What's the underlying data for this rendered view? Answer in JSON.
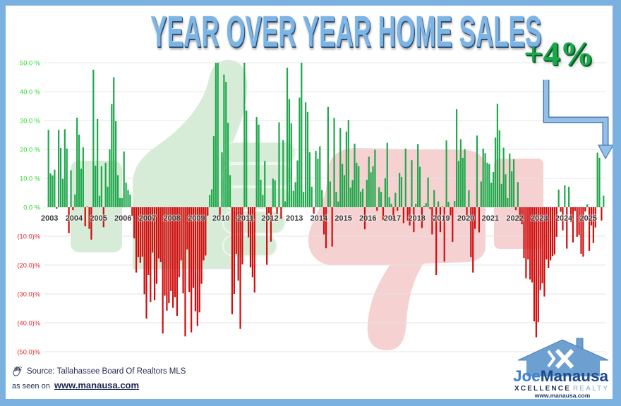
{
  "title": "YEAR OVER YEAR HOME SALES",
  "annotation": {
    "text": "+4%",
    "arrow_icon": "bent-arrow-down-icon"
  },
  "source": {
    "icon": "waving-hand-icon",
    "text": "Source: Tallahassee Board Of Realtors MLS",
    "seen_on_prefix": "as seen on",
    "seen_on_link": "www.manausa.com"
  },
  "logo": {
    "icon": "house-x-icon",
    "name_part1": "Joe",
    "name_part2": "Manausa",
    "tagline_bold": "XCELLENCE",
    "tagline_light": "REALTY",
    "url": "www.manausa.com"
  },
  "colors": {
    "frame": "#7ab1e0",
    "positive": "#1fa84c",
    "negative": "#d10c0c",
    "positive_label": "#2fdc2f",
    "negative_label": "#e42a30",
    "thumbs_up_watermark": "#d7ecd7",
    "thumbs_down_watermark": "#f6d1d1",
    "arrow": "#93c0ea"
  },
  "chart_data": {
    "type": "bar",
    "title": "YEAR OVER YEAR HOME SALES",
    "xlabel": "",
    "ylabel": "",
    "ylim": [
      -50,
      50
    ],
    "grid": true,
    "legend": null,
    "annotation": "+4%",
    "frequency": "monthly",
    "x_tick_labels": [
      "2003",
      "2004",
      "2005",
      "2006",
      "2007",
      "2008",
      "2009",
      "2010",
      "2011",
      "2012",
      "2013",
      "2014",
      "2015",
      "2016",
      "2017",
      "2018",
      "2019",
      "2020",
      "2021",
      "2022",
      "2023",
      "2024",
      "2025"
    ],
    "y_ticks": [
      50,
      40,
      30,
      20,
      10,
      0,
      -10,
      -20,
      -30,
      -40,
      -50
    ],
    "y_tick_labels": [
      "50.0 %",
      "40.0 %",
      "30.0 %",
      "20.0 %",
      "10.0 %",
      "0.0 %",
      "(10.0)%",
      "(20.0)%",
      "(30.0)%",
      "(40.0)%",
      "(50.0)%"
    ],
    "values": [
      26.8,
      11.7,
      11,
      13,
      -0.5,
      26.8,
      20.5,
      9.8,
      27,
      20.3,
      -9,
      12.8,
      -1,
      4.4,
      31,
      25.1,
      13.3,
      20.7,
      -6.6,
      0.3,
      -7.5,
      -11.2,
      47.6,
      14.4,
      30.5,
      4,
      14.2,
      -6.9,
      15.4,
      7.1,
      20,
      35.7,
      45,
      29.8,
      11.1,
      3.2,
      3.2,
      19.3,
      8.5,
      6,
      4.4,
      -3,
      -10.8,
      -22.6,
      -17.3,
      -19.2,
      -17.1,
      -30.1,
      -38.5,
      -23.4,
      -32.8,
      -15.7,
      -32.2,
      -26.5,
      -17.7,
      -19,
      -43.7,
      -30.6,
      -35.8,
      -33.2,
      -29,
      -34.8,
      -31.1,
      -37.6,
      -24.2,
      -18.4,
      -29.8,
      -44.7,
      -14.6,
      -29.3,
      -43.3,
      -27.9,
      -36,
      -41.1,
      -36.4,
      -26.5,
      -18.4,
      -16.7,
      -2.9,
      4.2,
      6.2,
      24.6,
      50,
      50,
      -3,
      19,
      45.9,
      43.4,
      29.2,
      11.1,
      -37,
      -30,
      -16.1,
      -25.4,
      -42.1,
      -19.8,
      50,
      33.5,
      -10.4,
      -20.8,
      -24.2,
      -29.5,
      31.2,
      28.6,
      9.5,
      4.2,
      16,
      -19.9,
      -2,
      -11.9,
      9.9,
      9.3,
      -2.3,
      29.4,
      -4,
      23.2,
      2,
      48.3,
      37.4,
      29,
      5.7,
      8.7,
      16.2,
      37.9,
      50,
      5.3,
      36.3,
      33,
      19,
      7.1,
      -2.2,
      19.5,
      16.8,
      21.1,
      6,
      -9.4,
      -14.2,
      34.7,
      8.9,
      -13.6,
      30.9,
      5.3,
      2,
      27.4,
      15,
      11.1,
      26.2,
      30.2,
      6.8,
      9.4,
      22,
      15.4,
      14.2,
      5.4,
      6.4,
      -7.6,
      9.5,
      17.5,
      12.1,
      14.2,
      19.9,
      -1.2,
      6.9,
      5.3,
      -4.5,
      10,
      22.3,
      3.5,
      1.2,
      -4.7,
      5,
      -1.2,
      11.9,
      10.5,
      -5.5,
      20.3,
      -4.7,
      -6.3,
      16.3,
      -8.6,
      1.2,
      21.9,
      14,
      -7.2,
      0.5,
      1.4,
      10.3,
      -0.6,
      -9.4,
      5.9,
      -23.4,
      2,
      -8.6,
      0.3,
      -18.8,
      23.1,
      1.8,
      -2.8,
      -12,
      2.2,
      33.9,
      16,
      23.5,
      17.1,
      20.1,
      -2.8,
      5.9,
      -17.3,
      -22.6,
      -7.5,
      24.8,
      -8.7,
      8.9,
      20.3,
      18.7,
      15.4,
      14.9,
      8.5,
      12.2,
      24.1,
      35.8,
      26.6,
      8.1,
      20.6,
      11.4,
      3.2,
      18.6,
      12.4,
      16.6,
      -1,
      8.7,
      -4.7,
      -5.9,
      -17.6,
      -24.6,
      -18.1,
      -25,
      -26,
      -39.5,
      -45,
      -39.8,
      -28.7,
      -26.3,
      -30.9,
      -18.1,
      -21,
      -18.4,
      -16.9,
      -16.3,
      -10.2,
      6.1,
      -1.6,
      -8,
      7.6,
      -14.3,
      7.1,
      -5.1,
      -12.2,
      -1.3,
      -10.2,
      -9.6,
      -16.1,
      -17.1,
      -1.5,
      1,
      -15.1,
      -6.3,
      -12.4,
      -7,
      18.9,
      17.1,
      -4.6,
      4
    ]
  }
}
